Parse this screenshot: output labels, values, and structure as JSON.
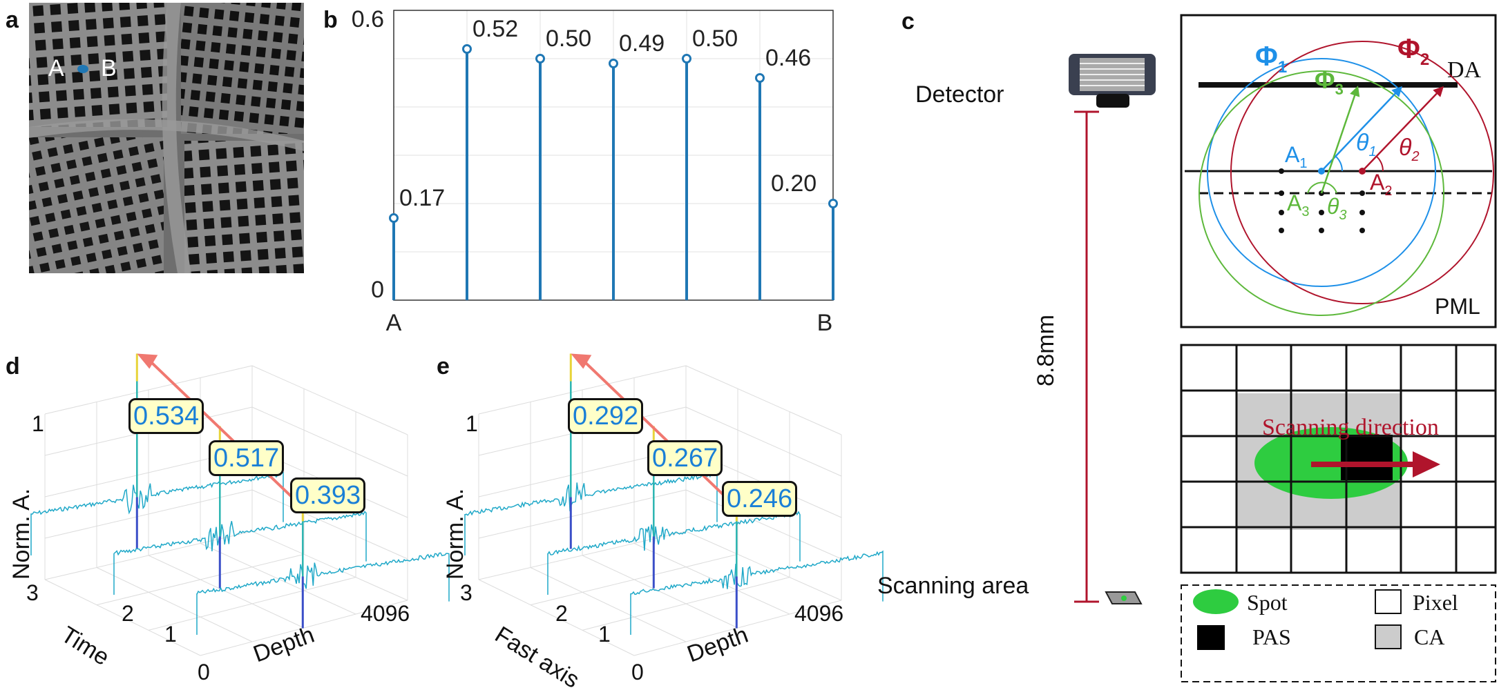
{
  "panel_labels": {
    "a": "a",
    "b": "b",
    "c": "c",
    "d": "d",
    "e": "e"
  },
  "image_a": {
    "point_a": "A",
    "point_b": "B"
  },
  "chart_data": [
    {
      "type": "stem",
      "panel": "b",
      "title": "",
      "xlabel": "",
      "ylabel": "",
      "x_tick_labels": [
        "A",
        "B"
      ],
      "y_tick_labels": [
        "0",
        "0.6"
      ],
      "ylim": [
        0,
        0.6
      ],
      "grid": true,
      "values": [
        0.17,
        0.52,
        0.5,
        0.49,
        0.5,
        0.46,
        0.2
      ],
      "data_labels": [
        "0.17",
        "0.52",
        "0.50",
        "0.49",
        "0.50",
        "0.46",
        "0.20"
      ],
      "color": "#1f77b4"
    },
    {
      "type": "waterfall-3d",
      "panel": "d",
      "zlabel": "Norm. A.",
      "ylabel": "Time",
      "xlabel": "Depth",
      "x_tick_labels": [
        "0",
        "4096"
      ],
      "y_tick_labels": [
        "1",
        "2",
        "3"
      ],
      "z_tick_labels": [
        "1"
      ],
      "peak_labels": [
        "0.534",
        "0.517",
        "0.393"
      ]
    },
    {
      "type": "waterfall-3d",
      "panel": "e",
      "zlabel": "Norm. A.",
      "ylabel": "Fast axis",
      "xlabel": "Depth",
      "x_tick_labels": [
        "0",
        "4096"
      ],
      "y_tick_labels": [
        "1",
        "2",
        "3"
      ],
      "z_tick_labels": [
        "1"
      ],
      "peak_labels": [
        "0.292",
        "0.267",
        "0.246"
      ]
    }
  ],
  "schematic_c": {
    "detector": "Detector",
    "distance": "8.8mm",
    "scanning_area": "Scanning area",
    "da": "DA",
    "pml": "PML",
    "phi": "Φ",
    "theta": "θ",
    "a": "A",
    "sub1": "1",
    "sub2": "2",
    "sub3": "3",
    "scanning_direction": "Scanning direction",
    "legend": {
      "spot": "Spot",
      "pixel": "Pixel",
      "pas": "PAS",
      "ca": "CA"
    },
    "colors": {
      "blue": "#1e90e8",
      "red": "#b0142c",
      "green": "#5db83b",
      "spot": "#2ecc40",
      "ca": "#cccccc"
    }
  }
}
